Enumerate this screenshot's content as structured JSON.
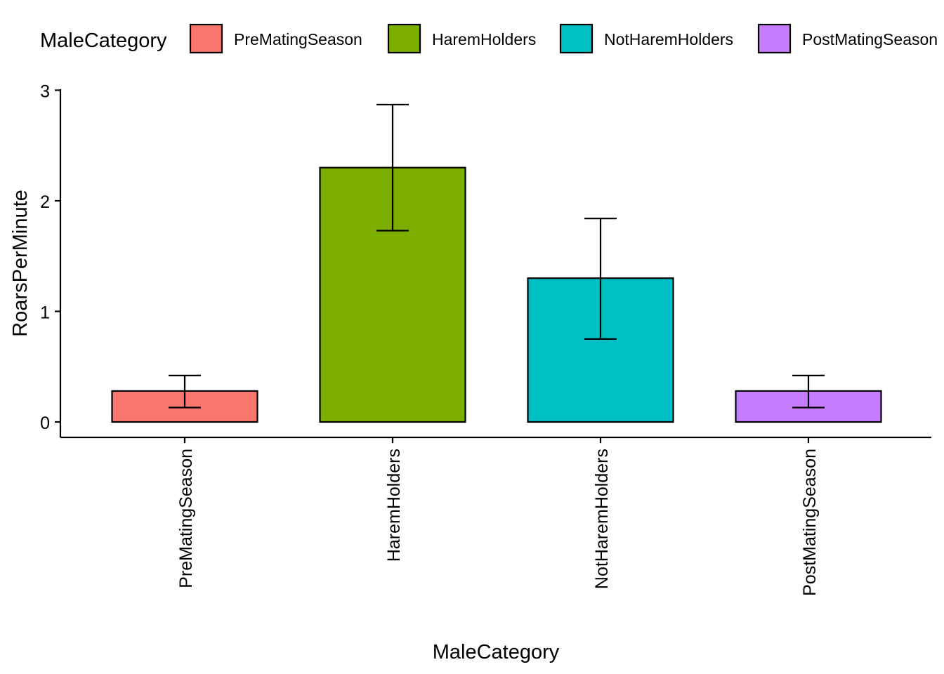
{
  "chart_data": {
    "type": "bar",
    "categories": [
      "PreMatingSeason",
      "HaremHolders",
      "NotHaremHolders",
      "PostMatingSeason"
    ],
    "values": [
      0.28,
      2.3,
      1.3,
      0.28
    ],
    "error_lower": [
      0.13,
      1.73,
      0.75,
      0.13
    ],
    "error_upper": [
      0.42,
      2.87,
      1.84,
      0.42
    ],
    "colors": [
      "#F8766D",
      "#7CAE00",
      "#00BFC4",
      "#C77CFF"
    ],
    "title": "",
    "xlabel": "MaleCategory",
    "ylabel": "RoarsPerMinute",
    "ylim": [
      0,
      3
    ],
    "yticks": [
      0,
      1,
      2,
      3
    ],
    "grid": false,
    "legend": {
      "title": "MaleCategory",
      "position": "top",
      "entries": [
        "PreMatingSeason",
        "HaremHolders",
        "NotHaremHolders",
        "PostMatingSeason"
      ]
    }
  }
}
